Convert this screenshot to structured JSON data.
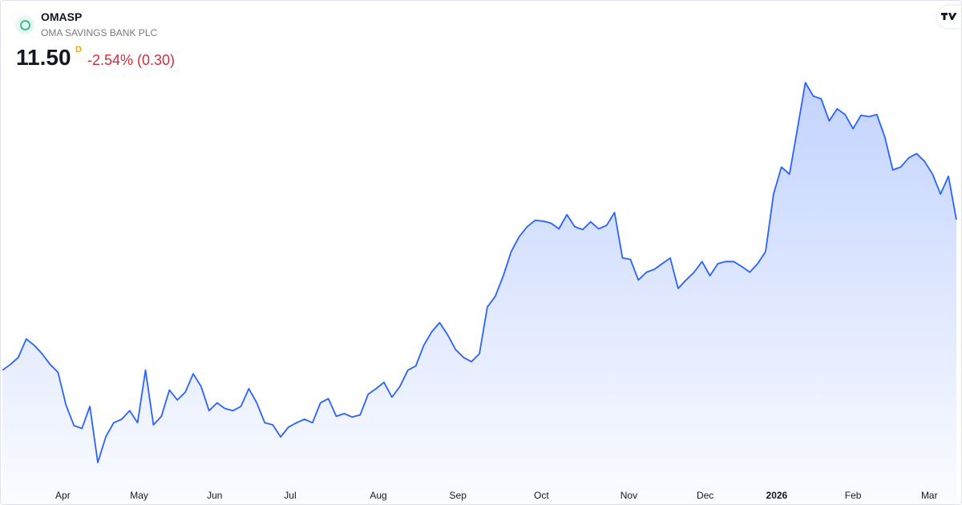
{
  "header": {
    "symbol": "OMASP",
    "name": "OMA SAVINGS BANK PLC",
    "price": "11.50",
    "interval": "D",
    "change": "-2.54% (0.30)"
  },
  "chart_data": {
    "type": "area",
    "color": "#2962ff",
    "values": [
      9.38,
      9.46,
      9.56,
      9.82,
      9.73,
      9.61,
      9.46,
      9.35,
      8.89,
      8.6,
      8.56,
      8.87,
      8.08,
      8.44,
      8.64,
      8.69,
      8.81,
      8.64,
      9.38,
      8.61,
      8.73,
      9.1,
      8.96,
      9.07,
      9.33,
      9.15,
      8.81,
      8.92,
      8.84,
      8.81,
      8.87,
      9.12,
      8.92,
      8.64,
      8.61,
      8.44,
      8.58,
      8.64,
      8.69,
      8.64,
      8.92,
      8.98,
      8.73,
      8.77,
      8.72,
      8.75,
      9.04,
      9.12,
      9.21,
      9.0,
      9.15,
      9.38,
      9.44,
      9.73,
      9.92,
      10.05,
      9.88,
      9.67,
      9.56,
      9.5,
      9.61,
      10.27,
      10.42,
      10.71,
      11.05,
      11.26,
      11.4,
      11.49,
      11.48,
      11.45,
      11.37,
      11.57,
      11.4,
      11.36,
      11.47,
      11.37,
      11.42,
      11.6,
      10.96,
      10.94,
      10.65,
      10.76,
      10.8,
      10.88,
      10.96,
      10.53,
      10.65,
      10.76,
      10.91,
      10.71,
      10.88,
      10.91,
      10.91,
      10.84,
      10.76,
      10.88,
      11.05,
      11.86,
      12.24,
      12.14,
      12.78,
      13.43,
      13.24,
      13.2,
      12.89,
      13.06,
      12.98,
      12.78,
      12.97,
      12.95,
      12.98,
      12.66,
      12.2,
      12.24,
      12.37,
      12.43,
      12.32,
      12.14,
      11.86,
      12.11,
      11.5
    ],
    "xticks": [
      {
        "value": 7.6,
        "label": "Apr"
      },
      {
        "value": 17.2,
        "label": "May"
      },
      {
        "value": 26.7,
        "label": "Jun"
      },
      {
        "value": 36.2,
        "label": "Jul"
      },
      {
        "value": 47.3,
        "label": "Aug"
      },
      {
        "value": 57.3,
        "label": "Sep"
      },
      {
        "value": 67.8,
        "label": "Oct"
      },
      {
        "value": 78.8,
        "label": "Nov"
      },
      {
        "value": 88.4,
        "label": "Dec"
      },
      {
        "value": 97.4,
        "label": "2026"
      },
      {
        "value": 107,
        "label": "Feb"
      },
      {
        "value": 116.6,
        "label": "Mar"
      }
    ]
  }
}
